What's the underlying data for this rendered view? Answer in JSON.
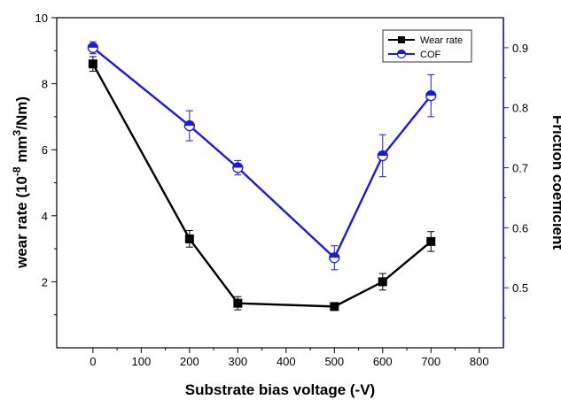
{
  "chart_data": {
    "type": "line",
    "x": [
      0,
      200,
      300,
      500,
      600,
      700
    ],
    "xlabel": "Substrate bias voltage (-V)",
    "xlim": [
      -75,
      850
    ],
    "xticks": [
      0,
      100,
      200,
      300,
      400,
      500,
      600,
      700,
      800
    ],
    "xtick_labels": [
      "0",
      "100",
      "200",
      "300",
      "400",
      "500",
      "600",
      "700",
      "800"
    ],
    "ylabel_left": {
      "prefix": "wear rate (10",
      "exp1": "-8",
      "mid": " mm",
      "exp2": "3",
      "suffix": "/Nm)"
    },
    "ylim_left": [
      0,
      10
    ],
    "yticks_left": [
      2,
      4,
      6,
      8,
      10
    ],
    "ytick_labels_left": [
      "2",
      "4",
      "6",
      "8",
      "10"
    ],
    "ylabel_right": "Friction coefficient",
    "ylim_right": [
      0.4,
      0.95
    ],
    "yticks_right": [
      0.5,
      0.6,
      0.7,
      0.8,
      0.9
    ],
    "ytick_labels_right": [
      "0.5",
      "0.6",
      "0.7",
      "0.8",
      "0.9"
    ],
    "series": [
      {
        "name": "Wear rate",
        "axis": "left",
        "color": "#000000",
        "marker": "square",
        "values": [
          8.6,
          3.3,
          1.35,
          1.25,
          2.0,
          3.22
        ],
        "errors": [
          0.22,
          0.25,
          0.2,
          0.1,
          0.25,
          0.3
        ]
      },
      {
        "name": "COF",
        "axis": "right",
        "color": "#1a1adb",
        "marker": "half-circle",
        "values": [
          0.9,
          0.77,
          0.7,
          0.55,
          0.72,
          0.82
        ],
        "errors": [
          0.01,
          0.025,
          0.012,
          0.02,
          0.035,
          0.035
        ]
      }
    ],
    "legend": "top-right",
    "grid": false
  }
}
